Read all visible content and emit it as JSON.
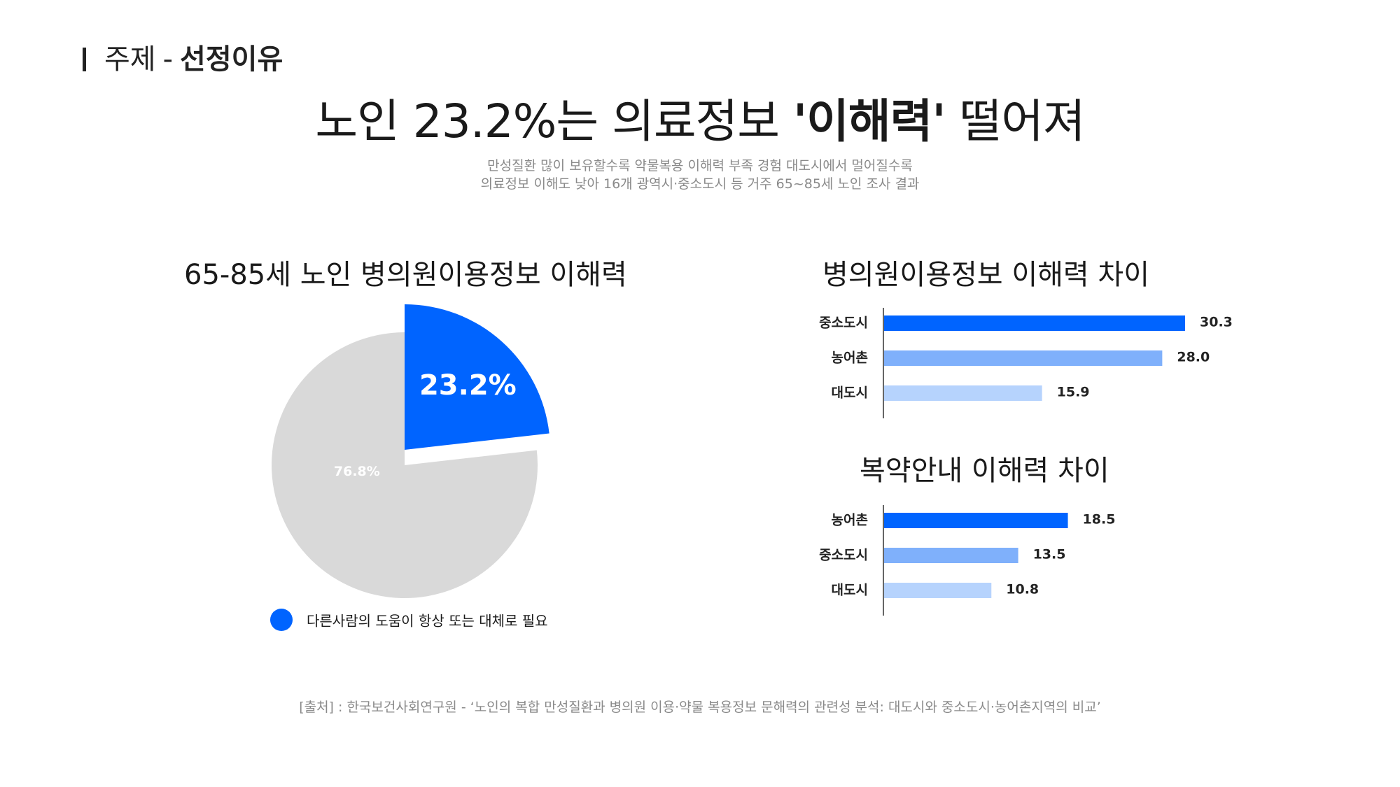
{
  "header": {
    "prefix": "주제",
    "separator": "-",
    "topic": "선정이유"
  },
  "headline": {
    "pre": "노인 23.2%는 의료정보 ",
    "emphasis": "'이해력'",
    "post": " 떨어져"
  },
  "subtitle": {
    "line1": "만성질환 많이 보유할수록 약물복용 이해력 부족 경험 대도시에서 멀어질수록",
    "line2": "의료정보 이해도 낮아 16개 광역시·중소도시 등 거주 65~85세 노인 조사 결과"
  },
  "colors": {
    "accent": "#0064ff",
    "mid": "#7fb0fb",
    "light": "#b6d3fd",
    "pie_rest": "#d9d9d9"
  },
  "legend": {
    "label": "다른사람의 도움이 항상 또는 대체로 필요"
  },
  "source": "[출처] : 한국보건사회연구원 - ‘노인의 복합 만성질환과 병의원 이용·약물 복용정보 문해력의 관련성 분석: 대도시와 중소도시·농어촌지역의 비교’",
  "chart_data": [
    {
      "type": "pie",
      "title": "65-85세 노인 병의원이용정보 이해력",
      "slices": [
        {
          "label": "다른사람의 도움이 항상 또는 대체로 필요",
          "value": 23.2,
          "display": "23.2%",
          "color": "#0064ff",
          "exploded": true
        },
        {
          "label": "",
          "value": 76.8,
          "display": "76.8%",
          "color": "#d9d9d9",
          "exploded": false
        }
      ]
    },
    {
      "type": "bar",
      "orientation": "horizontal",
      "title": "병의원이용정보 이해력 차이",
      "categories": [
        "중소도시",
        "농어촌",
        "대도시"
      ],
      "values": [
        30.3,
        28.0,
        15.9
      ],
      "labels": [
        "30.3",
        "28.0",
        "15.9"
      ],
      "colors": [
        "#0064ff",
        "#7fb0fb",
        "#b6d3fd"
      ],
      "xlim": [
        0,
        30.3
      ]
    },
    {
      "type": "bar",
      "orientation": "horizontal",
      "title": "복약안내 이해력 차이",
      "categories": [
        "농어촌",
        "중소도시",
        "대도시"
      ],
      "values": [
        18.5,
        13.5,
        10.8
      ],
      "labels": [
        "18.5",
        "13.5",
        "10.8"
      ],
      "colors": [
        "#0064ff",
        "#7fb0fb",
        "#b6d3fd"
      ],
      "xlim": [
        0,
        30.3
      ]
    }
  ]
}
